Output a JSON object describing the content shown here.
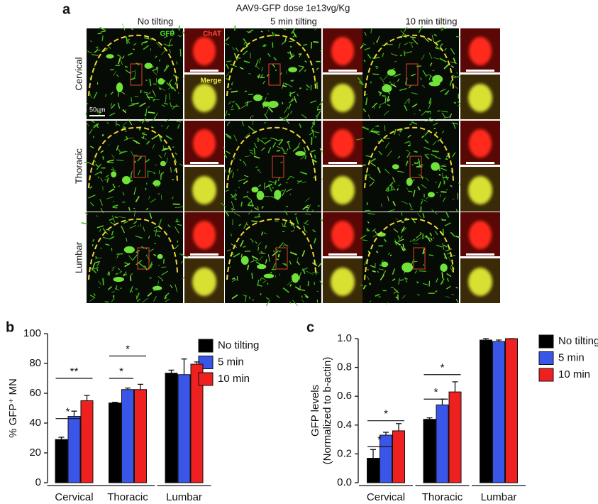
{
  "panel_a": {
    "label": "a",
    "title": "AAV9-GFP dose 1e13vg/Kg",
    "columns": [
      "No tilting",
      "5 min tilting",
      "10 min tilting"
    ],
    "rows": [
      "Cervical",
      "Thoracic",
      "Lumbar"
    ],
    "channel_labels": [
      "GFP",
      "ChAT",
      "Merge"
    ],
    "scale_bar": "50um"
  },
  "chart_data": [
    {
      "type": "bar",
      "panel_label": "b",
      "ylabel": "% GFP⁺ MN",
      "categories": [
        "Cervical",
        "Thoracic",
        "Lumbar"
      ],
      "series": [
        {
          "name": "No tilting",
          "color": "#000000",
          "values": [
            29,
            53.5,
            73.5
          ],
          "errors": [
            1.5,
            0.5,
            2
          ]
        },
        {
          "name": "5 min",
          "color": "#3a56e8",
          "values": [
            44.5,
            62.5,
            72.5
          ],
          "errors": [
            3.5,
            1,
            10.5
          ]
        },
        {
          "name": "10 min",
          "color": "#ee2020",
          "values": [
            55,
            62.5,
            79.5
          ],
          "errors": [
            3.5,
            3.5,
            1.5
          ]
        }
      ],
      "ylim": [
        0,
        100
      ],
      "yticks": [
        0,
        20,
        40,
        60,
        80,
        100
      ],
      "annotations": [
        "*",
        "**",
        "*",
        "*"
      ]
    },
    {
      "type": "bar",
      "panel_label": "c",
      "ylabel": [
        "GFP levels",
        "(Normalized to b-actin)"
      ],
      "categories": [
        "Cervical",
        "Thoracic",
        "Lumbar"
      ],
      "series": [
        {
          "name": "No tilting",
          "color": "#000000",
          "values": [
            0.17,
            0.44,
            0.99
          ],
          "errors": [
            0.06,
            0.01,
            0.01
          ]
        },
        {
          "name": "5 min",
          "color": "#3a56e8",
          "values": [
            0.33,
            0.54,
            0.98
          ],
          "errors": [
            0.02,
            0.04,
            0.01
          ]
        },
        {
          "name": "10 min",
          "color": "#ee2020",
          "values": [
            0.36,
            0.63,
            1.0
          ],
          "errors": [
            0.05,
            0.07,
            0
          ]
        }
      ],
      "ylim": [
        0,
        1
      ],
      "yticks": [
        {
          "value": 0,
          "label": "0.0"
        },
        0.2,
        0.4,
        0.6,
        0.8,
        {
          "value": 1,
          "label": "1.0"
        }
      ],
      "annotations": [
        "*",
        "*",
        "*",
        "*"
      ]
    }
  ]
}
